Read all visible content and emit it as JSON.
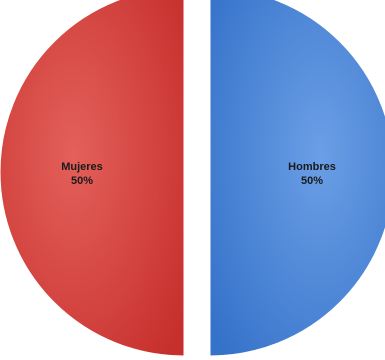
{
  "chart_data": {
    "type": "pie",
    "title": "",
    "slices": [
      {
        "name": "Mujeres",
        "value": 50,
        "label_pct": "50%",
        "color": "#d9413e"
      },
      {
        "name": "Hombres",
        "value": 50,
        "label_pct": "50%",
        "color": "#4a84d8"
      }
    ],
    "exploded": true,
    "legend": "none"
  }
}
